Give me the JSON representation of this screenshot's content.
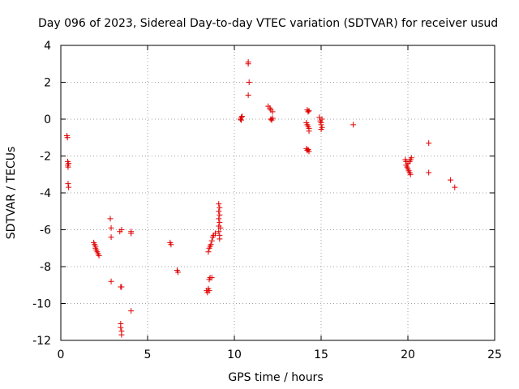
{
  "chart_data": {
    "type": "scatter",
    "title": "Day 096 of 2023, Sidereal Day-to-day VTEC variation (SDTVAR) for receiver usud",
    "xlabel": "GPS time / hours",
    "ylabel": "SDTVAR / TECUs",
    "xlim": [
      0,
      25
    ],
    "ylim": [
      -12,
      4
    ],
    "xticks": [
      0,
      5,
      10,
      15,
      20,
      25
    ],
    "yticks": [
      -12,
      -10,
      -8,
      -6,
      -4,
      -2,
      0,
      2,
      4
    ],
    "grid": true,
    "marker": "+",
    "color": "#e00000",
    "series": [
      {
        "name": "SDTVAR",
        "points": [
          [
            0.35,
            -0.9
          ],
          [
            0.38,
            -1.0
          ],
          [
            0.4,
            -2.3
          ],
          [
            0.4,
            -2.5
          ],
          [
            0.42,
            -2.6
          ],
          [
            0.45,
            -2.4
          ],
          [
            0.42,
            -3.5
          ],
          [
            0.45,
            -3.7
          ],
          [
            1.9,
            -6.7
          ],
          [
            1.95,
            -6.8
          ],
          [
            2.0,
            -6.9
          ],
          [
            2.0,
            -7.0
          ],
          [
            2.05,
            -7.1
          ],
          [
            2.1,
            -7.2
          ],
          [
            2.15,
            -7.3
          ],
          [
            2.2,
            -7.4
          ],
          [
            2.85,
            -5.4
          ],
          [
            2.9,
            -5.9
          ],
          [
            2.9,
            -6.4
          ],
          [
            2.9,
            -8.8
          ],
          [
            3.4,
            -6.1
          ],
          [
            3.5,
            -6.0
          ],
          [
            3.45,
            -9.1
          ],
          [
            3.5,
            -9.1
          ],
          [
            3.45,
            -11.1
          ],
          [
            3.45,
            -11.3
          ],
          [
            3.5,
            -11.5
          ],
          [
            3.5,
            -11.7
          ],
          [
            4.05,
            -6.1
          ],
          [
            4.05,
            -6.2
          ],
          [
            4.05,
            -10.4
          ],
          [
            6.3,
            -6.7
          ],
          [
            6.35,
            -6.8
          ],
          [
            6.7,
            -8.2
          ],
          [
            6.75,
            -8.3
          ],
          [
            8.4,
            -9.3
          ],
          [
            8.45,
            -9.4
          ],
          [
            8.5,
            -9.2
          ],
          [
            8.55,
            -9.3
          ],
          [
            8.5,
            -7.2
          ],
          [
            8.55,
            -7.0
          ],
          [
            8.6,
            -6.9
          ],
          [
            8.65,
            -6.8
          ],
          [
            8.7,
            -6.6
          ],
          [
            8.75,
            -6.4
          ],
          [
            8.8,
            -6.3
          ],
          [
            8.9,
            -6.2
          ],
          [
            8.55,
            -8.7
          ],
          [
            8.6,
            -8.6
          ],
          [
            8.7,
            -8.6
          ],
          [
            9.1,
            -4.6
          ],
          [
            9.15,
            -4.8
          ],
          [
            9.1,
            -5.0
          ],
          [
            9.15,
            -5.2
          ],
          [
            9.1,
            -5.4
          ],
          [
            9.15,
            -5.6
          ],
          [
            9.1,
            -5.8
          ],
          [
            9.2,
            -5.9
          ],
          [
            9.1,
            -6.1
          ],
          [
            9.15,
            -6.3
          ],
          [
            9.15,
            -6.5
          ],
          [
            10.35,
            0.0
          ],
          [
            10.4,
            0.1
          ],
          [
            10.45,
            0.15
          ],
          [
            10.4,
            -0.05
          ],
          [
            10.8,
            3.1
          ],
          [
            10.8,
            3.0
          ],
          [
            10.85,
            2.0
          ],
          [
            10.8,
            1.3
          ],
          [
            11.95,
            0.7
          ],
          [
            12.05,
            0.6
          ],
          [
            12.1,
            0.5
          ],
          [
            12.2,
            0.4
          ],
          [
            12.1,
            0.0
          ],
          [
            12.15,
            -0.05
          ],
          [
            12.2,
            0.05
          ],
          [
            14.2,
            0.5
          ],
          [
            14.25,
            0.4
          ],
          [
            14.3,
            0.45
          ],
          [
            14.15,
            -0.2
          ],
          [
            14.2,
            -0.3
          ],
          [
            14.25,
            -0.4
          ],
          [
            14.3,
            -0.5
          ],
          [
            14.3,
            -0.65
          ],
          [
            14.15,
            -1.6
          ],
          [
            14.2,
            -1.7
          ],
          [
            14.25,
            -1.65
          ],
          [
            14.3,
            -1.75
          ],
          [
            14.9,
            0.1
          ],
          [
            14.95,
            -0.1
          ],
          [
            15.0,
            -0.2
          ],
          [
            15.0,
            -0.3
          ],
          [
            15.05,
            -0.45
          ],
          [
            15.0,
            -0.55
          ],
          [
            15.05,
            0.0
          ],
          [
            16.85,
            -0.3
          ],
          [
            19.85,
            -2.2
          ],
          [
            19.9,
            -2.3
          ],
          [
            19.9,
            -2.5
          ],
          [
            19.95,
            -2.6
          ],
          [
            20.0,
            -2.7
          ],
          [
            20.05,
            -2.8
          ],
          [
            20.1,
            -2.9
          ],
          [
            20.15,
            -3.0
          ],
          [
            20.0,
            -2.4
          ],
          [
            20.1,
            -2.3
          ],
          [
            20.15,
            -2.2
          ],
          [
            20.2,
            -2.1
          ],
          [
            21.2,
            -1.3
          ],
          [
            21.2,
            -2.9
          ],
          [
            22.45,
            -3.3
          ],
          [
            22.7,
            -3.7
          ]
        ]
      }
    ]
  }
}
